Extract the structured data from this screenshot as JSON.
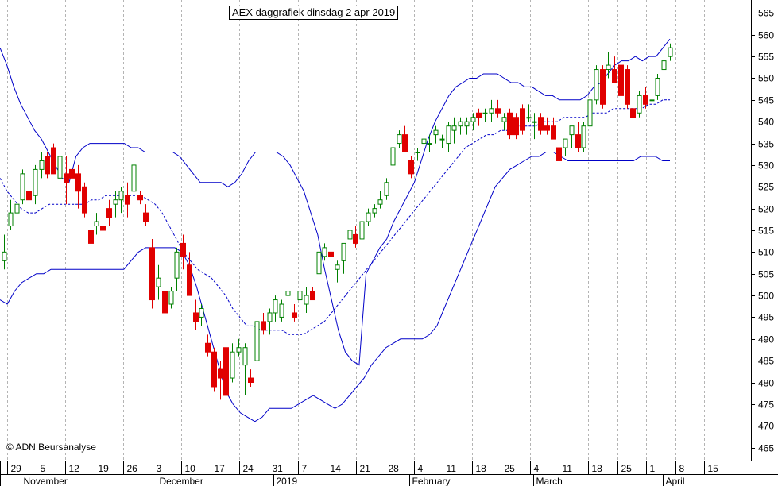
{
  "chart_data": {
    "type": "candlestick",
    "title": "AEX daggrafiek dinsdag 2 apr 2019",
    "copyright": "© ADN Beursanalyse",
    "y_ticks": [
      465,
      470,
      475,
      480,
      485,
      490,
      495,
      500,
      505,
      510,
      515,
      520,
      525,
      530,
      535,
      540,
      545,
      550,
      555,
      560,
      565
    ],
    "ylim": [
      462,
      568
    ],
    "day_ticks": [
      "29",
      "5",
      "12",
      "19",
      "26",
      "3",
      "10",
      "17",
      "24",
      "31",
      "7",
      "14",
      "21",
      "28",
      "4",
      "11",
      "18",
      "25",
      "4",
      "11",
      "18",
      "25",
      "1",
      "8",
      "15"
    ],
    "month_labels": [
      "November",
      "December",
      "2019",
      "February",
      "March",
      "April"
    ],
    "grid": "vertical dashed",
    "colors": {
      "up": "#008000",
      "down": "#e00000",
      "band": "#0000c8",
      "background": "#ffffff"
    },
    "candles": [
      {
        "o": 508,
        "h": 514,
        "l": 506,
        "c": 510
      },
      {
        "o": 516,
        "h": 522,
        "l": 515,
        "c": 519
      },
      {
        "o": 519,
        "h": 523,
        "l": 518,
        "c": 521
      },
      {
        "o": 522,
        "h": 529,
        "l": 521,
        "c": 528
      },
      {
        "o": 524,
        "h": 526,
        "l": 521,
        "c": 522
      },
      {
        "o": 523,
        "h": 530,
        "l": 521,
        "c": 529
      },
      {
        "o": 529,
        "h": 533,
        "l": 527,
        "c": 531
      },
      {
        "o": 532,
        "h": 533,
        "l": 527,
        "c": 528
      },
      {
        "o": 534,
        "h": 535,
        "l": 528,
        "c": 528
      },
      {
        "o": 527,
        "h": 533,
        "l": 525,
        "c": 532
      },
      {
        "o": 528,
        "h": 532,
        "l": 521,
        "c": 526
      },
      {
        "o": 529,
        "h": 530,
        "l": 522,
        "c": 527
      },
      {
        "o": 528,
        "h": 530,
        "l": 520,
        "c": 524
      },
      {
        "o": 525,
        "h": 526,
        "l": 518,
        "c": 519
      },
      {
        "o": 515,
        "h": 517,
        "l": 507,
        "c": 512
      },
      {
        "o": 516,
        "h": 519,
        "l": 514,
        "c": 517
      },
      {
        "o": 516,
        "h": 517,
        "l": 510,
        "c": 515
      },
      {
        "o": 520,
        "h": 522,
        "l": 516,
        "c": 518
      },
      {
        "o": 521,
        "h": 524,
        "l": 518,
        "c": 522
      },
      {
        "o": 522,
        "h": 525,
        "l": 519,
        "c": 524
      },
      {
        "o": 523,
        "h": 526,
        "l": 518,
        "c": 521
      },
      {
        "o": 524,
        "h": 531,
        "l": 523,
        "c": 530
      },
      {
        "o": 523,
        "h": 524,
        "l": 521,
        "c": 522
      },
      {
        "o": 519,
        "h": 521,
        "l": 516,
        "c": 517
      },
      {
        "o": 511,
        "h": 513,
        "l": 497,
        "c": 499
      },
      {
        "o": 502,
        "h": 507,
        "l": 499,
        "c": 504
      },
      {
        "o": 501,
        "h": 505,
        "l": 494,
        "c": 496
      },
      {
        "o": 498,
        "h": 502,
        "l": 497,
        "c": 501
      },
      {
        "o": 504,
        "h": 511,
        "l": 501,
        "c": 510
      },
      {
        "o": 512,
        "h": 514,
        "l": 506,
        "c": 509
      },
      {
        "o": 507,
        "h": 510,
        "l": 500,
        "c": 500
      },
      {
        "o": 496,
        "h": 499,
        "l": 492,
        "c": 494
      },
      {
        "o": 495,
        "h": 498,
        "l": 493,
        "c": 497
      },
      {
        "o": 489,
        "h": 491,
        "l": 486,
        "c": 487
      },
      {
        "o": 487,
        "h": 488,
        "l": 478,
        "c": 479
      },
      {
        "o": 483,
        "h": 485,
        "l": 476,
        "c": 481
      },
      {
        "o": 488,
        "h": 489,
        "l": 473,
        "c": 477
      },
      {
        "o": 481,
        "h": 489,
        "l": 480,
        "c": 487
      },
      {
        "o": 487,
        "h": 490,
        "l": 486,
        "c": 488
      },
      {
        "o": 484,
        "h": 489,
        "l": 477,
        "c": 488
      },
      {
        "o": 481,
        "h": 483,
        "l": 479,
        "c": 480
      },
      {
        "o": 485,
        "h": 496,
        "l": 484,
        "c": 494
      },
      {
        "o": 494,
        "h": 496,
        "l": 491,
        "c": 492
      },
      {
        "o": 494,
        "h": 497,
        "l": 491,
        "c": 496
      },
      {
        "o": 496,
        "h": 500,
        "l": 494,
        "c": 499
      },
      {
        "o": 495,
        "h": 499,
        "l": 494,
        "c": 498
      },
      {
        "o": 500,
        "h": 502,
        "l": 497,
        "c": 501
      },
      {
        "o": 496,
        "h": 498,
        "l": 494,
        "c": 495
      },
      {
        "o": 499,
        "h": 502,
        "l": 498,
        "c": 501
      },
      {
        "o": 498,
        "h": 502,
        "l": 496,
        "c": 500
      },
      {
        "o": 501,
        "h": 502,
        "l": 499,
        "c": 499
      },
      {
        "o": 505,
        "h": 512,
        "l": 503,
        "c": 510
      },
      {
        "o": 509,
        "h": 512,
        "l": 508,
        "c": 511
      },
      {
        "o": 510,
        "h": 511,
        "l": 507,
        "c": 509
      },
      {
        "o": 506,
        "h": 508,
        "l": 503,
        "c": 507
      },
      {
        "o": 508,
        "h": 512,
        "l": 505,
        "c": 512
      },
      {
        "o": 513,
        "h": 516,
        "l": 511,
        "c": 515
      },
      {
        "o": 514,
        "h": 516,
        "l": 511,
        "c": 512
      },
      {
        "o": 513,
        "h": 518,
        "l": 512,
        "c": 517
      },
      {
        "o": 517,
        "h": 520,
        "l": 516,
        "c": 519
      },
      {
        "o": 519,
        "h": 521,
        "l": 518,
        "c": 520
      },
      {
        "o": 521,
        "h": 524,
        "l": 520,
        "c": 522
      },
      {
        "o": 523,
        "h": 527,
        "l": 522,
        "c": 526
      },
      {
        "o": 530,
        "h": 535,
        "l": 529,
        "c": 534
      },
      {
        "o": 535,
        "h": 538,
        "l": 534,
        "c": 537
      },
      {
        "o": 537,
        "h": 539,
        "l": 533,
        "c": 533
      },
      {
        "o": 531,
        "h": 532,
        "l": 527,
        "c": 528
      },
      {
        "o": 533,
        "h": 534,
        "l": 531,
        "c": 533
      },
      {
        "o": 535,
        "h": 536,
        "l": 534,
        "c": 536
      },
      {
        "o": 535,
        "h": 537,
        "l": 533,
        "c": 535
      },
      {
        "o": 537,
        "h": 539,
        "l": 535,
        "c": 538
      },
      {
        "o": 536,
        "h": 537,
        "l": 534,
        "c": 536
      },
      {
        "o": 535,
        "h": 540,
        "l": 533,
        "c": 539
      },
      {
        "o": 538,
        "h": 541,
        "l": 535,
        "c": 539
      },
      {
        "o": 539,
        "h": 541,
        "l": 537,
        "c": 540
      },
      {
        "o": 539,
        "h": 541,
        "l": 537,
        "c": 540
      },
      {
        "o": 540,
        "h": 542,
        "l": 538,
        "c": 541
      },
      {
        "o": 542,
        "h": 543,
        "l": 539,
        "c": 541
      },
      {
        "o": 542,
        "h": 543,
        "l": 540,
        "c": 542
      },
      {
        "o": 542,
        "h": 545,
        "l": 540,
        "c": 543
      },
      {
        "o": 543,
        "h": 545,
        "l": 541,
        "c": 542
      },
      {
        "o": 540,
        "h": 542,
        "l": 538,
        "c": 541
      },
      {
        "o": 542,
        "h": 543,
        "l": 536,
        "c": 537
      },
      {
        "o": 541,
        "h": 542,
        "l": 536,
        "c": 537
      },
      {
        "o": 543,
        "h": 544,
        "l": 537,
        "c": 538
      },
      {
        "o": 541,
        "h": 544,
        "l": 540,
        "c": 541
      },
      {
        "o": 540,
        "h": 542,
        "l": 536,
        "c": 540
      },
      {
        "o": 541,
        "h": 542,
        "l": 537,
        "c": 538
      },
      {
        "o": 539,
        "h": 541,
        "l": 537,
        "c": 538
      },
      {
        "o": 539,
        "h": 541,
        "l": 536,
        "c": 536
      },
      {
        "o": 534,
        "h": 535,
        "l": 530,
        "c": 531
      },
      {
        "o": 534,
        "h": 536,
        "l": 532,
        "c": 536
      },
      {
        "o": 537,
        "h": 539,
        "l": 534,
        "c": 539
      },
      {
        "o": 537,
        "h": 540,
        "l": 533,
        "c": 534
      },
      {
        "o": 534,
        "h": 540,
        "l": 533,
        "c": 539
      },
      {
        "o": 539,
        "h": 546,
        "l": 538,
        "c": 545
      },
      {
        "o": 545,
        "h": 553,
        "l": 544,
        "c": 552
      },
      {
        "o": 552,
        "h": 553,
        "l": 543,
        "c": 544
      },
      {
        "o": 552,
        "h": 556,
        "l": 550,
        "c": 553
      },
      {
        "o": 552,
        "h": 555,
        "l": 549,
        "c": 549
      },
      {
        "o": 553,
        "h": 554,
        "l": 545,
        "c": 546
      },
      {
        "o": 552,
        "h": 553,
        "l": 543,
        "c": 544
      },
      {
        "o": 543,
        "h": 544,
        "l": 539,
        "c": 541
      },
      {
        "o": 542,
        "h": 547,
        "l": 541,
        "c": 546
      },
      {
        "o": 546,
        "h": 548,
        "l": 543,
        "c": 544
      },
      {
        "o": 545,
        "h": 547,
        "l": 543,
        "c": 545
      },
      {
        "o": 546,
        "h": 551,
        "l": 545,
        "c": 550
      },
      {
        "o": 552,
        "h": 556,
        "l": 551,
        "c": 554
      },
      {
        "o": 555,
        "h": 558,
        "l": 554,
        "c": 557
      }
    ],
    "upper_band": [
      557,
      553,
      548,
      544,
      541,
      538,
      536,
      533,
      530,
      527,
      526,
      532,
      534,
      535,
      535,
      535,
      535,
      535,
      535,
      534,
      534,
      533,
      533,
      533,
      533,
      533,
      532,
      530,
      528,
      526,
      526,
      526,
      526,
      525,
      526,
      528,
      531,
      533,
      533,
      533,
      533,
      532,
      530,
      527,
      524,
      519,
      514,
      506,
      499,
      492,
      487,
      485,
      484,
      505,
      508,
      511,
      513,
      517,
      520,
      523,
      526,
      531,
      536,
      540,
      543,
      546,
      548,
      549,
      550,
      550,
      551,
      551,
      551,
      550,
      549,
      549,
      548,
      548,
      547,
      546,
      546,
      545,
      545,
      545,
      545,
      546,
      548,
      549,
      551,
      553,
      554,
      554,
      555,
      554,
      555,
      555,
      557,
      559
    ],
    "middle_band": [
      527,
      524,
      522,
      520,
      519,
      519,
      520,
      521,
      521,
      521,
      521,
      521,
      521,
      522,
      522,
      523,
      523,
      523,
      523,
      523,
      523,
      522,
      521,
      519,
      516,
      513,
      510,
      508,
      506,
      505,
      504,
      502,
      500,
      497,
      495,
      493,
      493,
      492,
      492,
      492,
      492,
      491,
      491,
      491,
      492,
      493,
      494,
      496,
      498,
      500,
      502,
      504,
      506,
      508,
      510,
      512,
      514,
      516,
      518,
      520,
      522,
      524,
      526,
      528,
      530,
      532,
      534,
      535,
      536,
      537,
      537,
      538,
      538,
      539,
      539,
      539,
      539,
      540,
      540,
      540,
      541,
      541,
      541,
      541,
      542,
      542,
      542,
      543,
      543,
      543,
      543,
      543,
      544,
      544,
      545,
      545
    ],
    "lower_band": [
      499,
      498,
      501,
      503,
      504,
      505,
      505,
      506,
      506,
      506,
      506,
      506,
      506,
      506,
      506,
      506,
      506,
      506,
      508,
      510,
      511,
      511,
      511,
      511,
      511,
      510,
      507,
      502,
      496,
      490,
      484,
      478,
      475,
      473,
      472,
      471,
      472,
      474,
      474,
      474,
      474,
      475,
      476,
      477,
      476,
      475,
      474,
      475,
      477,
      479,
      481,
      484,
      486,
      488,
      489,
      490,
      490,
      490,
      490,
      491,
      493,
      497,
      501,
      505,
      509,
      513,
      517,
      521,
      525,
      527,
      529,
      530,
      531,
      532,
      532,
      533,
      533,
      532,
      531,
      531,
      531,
      531,
      531,
      531,
      531,
      531,
      531,
      531,
      532,
      532,
      532,
      531,
      531
    ]
  }
}
